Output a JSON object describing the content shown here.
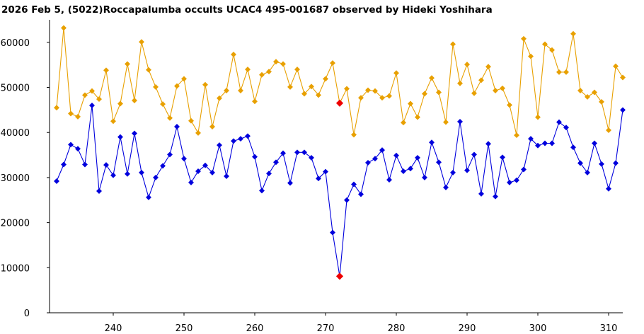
{
  "chart_data": {
    "type": "line",
    "title": "2026 Feb 5, (5022)Roccapalumba occults UCAC4 495-001687 observed by Hideki Yoshihara",
    "xlabel": "",
    "ylabel": "",
    "xlim": [
      231,
      312
    ],
    "ylim": [
      0,
      65000
    ],
    "x_ticks": [
      240,
      250,
      260,
      270,
      280,
      290,
      300,
      310
    ],
    "y_ticks": [
      0,
      10000,
      20000,
      30000,
      40000,
      50000,
      60000
    ],
    "x_tick_labels": [
      "240",
      "250",
      "260",
      "270",
      "280",
      "290",
      "300",
      "310"
    ],
    "y_tick_labels": [
      "0",
      "10000",
      "20000",
      "30000",
      "40000",
      "50000",
      "60000"
    ],
    "grid": false,
    "x_start": 232,
    "highlight_x": 272,
    "series": [
      {
        "color": "#e8a000",
        "values": [
          45500,
          63200,
          44200,
          43500,
          48300,
          49200,
          47400,
          53800,
          42500,
          46400,
          55200,
          47100,
          60100,
          53900,
          50100,
          46300,
          43200,
          50300,
          51900,
          42600,
          39900,
          50600,
          41300,
          47600,
          49300,
          57300,
          49300,
          54000,
          46900,
          52800,
          53500,
          55700,
          55200,
          50100,
          54000,
          48600,
          50200,
          48300,
          51900,
          55400,
          46500,
          49700,
          39500,
          47700,
          49400,
          49200,
          47700,
          48100,
          53200,
          42200,
          46400,
          43400,
          48600,
          52100,
          48900,
          42300,
          59600,
          50900,
          55100,
          48700,
          51600,
          54600,
          49300,
          49800,
          46100,
          39400,
          60800,
          56900,
          43400,
          59600,
          58300,
          53400,
          53400,
          61900,
          49300,
          47900,
          48900,
          46800,
          40500,
          54700,
          52200
        ]
      },
      {
        "color": "#0000dd",
        "values": [
          29200,
          32900,
          37300,
          36400,
          32900,
          46000,
          27000,
          32800,
          30500,
          39000,
          30800,
          39800,
          31100,
          25600,
          30000,
          32600,
          35100,
          41300,
          34200,
          28900,
          31400,
          32700,
          31100,
          37200,
          30300,
          38100,
          38600,
          39200,
          34600,
          27100,
          30900,
          33400,
          35400,
          28800,
          35600,
          35600,
          34400,
          29800,
          31300,
          17800,
          8100,
          25000,
          28500,
          26300,
          33300,
          34200,
          36100,
          29500,
          34900,
          31400,
          32000,
          34400,
          30000,
          37800,
          33400,
          27800,
          31100,
          42400,
          31600,
          35100,
          26400,
          37500,
          25800,
          34500,
          28900,
          29400,
          31800,
          38600,
          37100,
          37600,
          37600,
          42300,
          41100,
          36700,
          33200,
          31100,
          37600,
          33000,
          27500,
          33200,
          45000
        ]
      }
    ]
  }
}
